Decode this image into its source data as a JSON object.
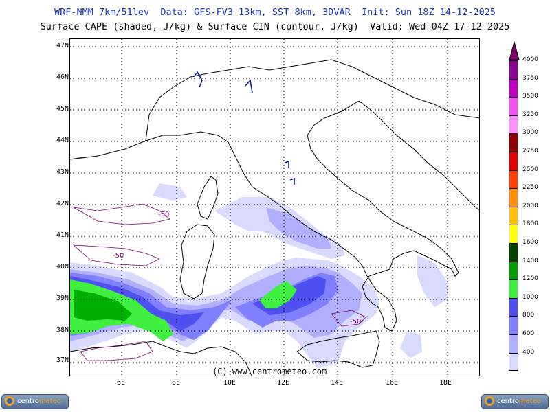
{
  "header": {
    "line1": "WRF-NMM 7km/51lev  Data: GFS-FV3 13km, SST 8km, 3DVAR  Init: Sun 18Z 14-12-2025",
    "line2": "Surface CAPE (shaded, J/kg) & Surface CIN (contour, J/kg)  Valid: Wed 04Z 17-12-2025"
  },
  "map": {
    "lat_labels": [
      "47N",
      "46N",
      "45N",
      "44N",
      "43N",
      "42N",
      "41N",
      "40N",
      "39N",
      "38N",
      "37N"
    ],
    "lon_labels": [
      "6E",
      "8E",
      "10E",
      "12E",
      "14E",
      "16E",
      "18E"
    ],
    "cin_contour_labels": [
      "-50",
      "-50",
      "-50"
    ],
    "copyright": "(C) www.centrometeo.com"
  },
  "scale": {
    "levels": [
      {
        "label": "4000",
        "color": "#8c0090"
      },
      {
        "label": "3750",
        "color": "#c000c0"
      },
      {
        "label": "3500",
        "color": "#f050f0"
      },
      {
        "label": "3250",
        "color": "#ff90ff"
      },
      {
        "label": "3000",
        "color": "#8c0000"
      },
      {
        "label": "2750",
        "color": "#e00000"
      },
      {
        "label": "2500",
        "color": "#ff4000"
      },
      {
        "label": "2250",
        "color": "#ff9000"
      },
      {
        "label": "2000",
        "color": "#ffc000"
      },
      {
        "label": "1800",
        "color": "#ffff00"
      },
      {
        "label": "1600",
        "color": "#004400"
      },
      {
        "label": "1400",
        "color": "#00a000"
      },
      {
        "label": "1200",
        "color": "#40f040"
      },
      {
        "label": "1000",
        "color": "#5050f0"
      },
      {
        "label": "800",
        "color": "#8080ff"
      },
      {
        "label": "600",
        "color": "#b0b0ff"
      },
      {
        "label": "400",
        "color": "#dadaff"
      }
    ],
    "top_color": "#800070"
  },
  "logos": {
    "left_a": "centro",
    "left_b": "meteo",
    "right_a": "centro",
    "right_b": "meteo"
  }
}
